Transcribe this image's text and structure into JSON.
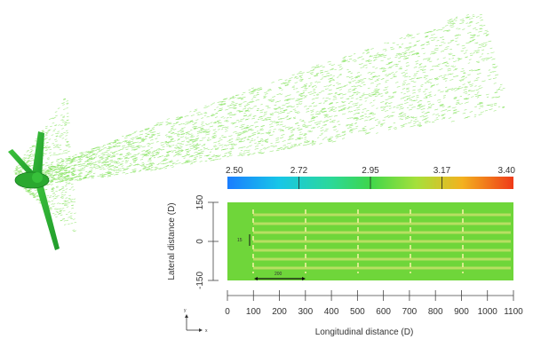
{
  "figure": {
    "colorbar": {
      "min": 2.5,
      "max": 3.4,
      "tick_labels": [
        "2.50",
        "2.72",
        "2.95",
        "3.17",
        "3.40"
      ]
    },
    "domain_view": {
      "ylabel": "Lateral distance (D)",
      "y_tick_labels": [
        "150",
        "0",
        "-150"
      ],
      "inner_labels": {
        "spacing_small": "15",
        "spacing_long": "200"
      },
      "background_color": "#6fd63a",
      "turbine_line_color": "#c4e06a"
    },
    "x_axis": {
      "xlabel": "Longitudinal distance (D)",
      "ticks": [
        0,
        100,
        200,
        300,
        400,
        500,
        600,
        700,
        800,
        900,
        1000,
        1100
      ]
    },
    "triad": {
      "y_label": "y",
      "x_label": "x"
    },
    "wake_color": "#7ce052"
  }
}
